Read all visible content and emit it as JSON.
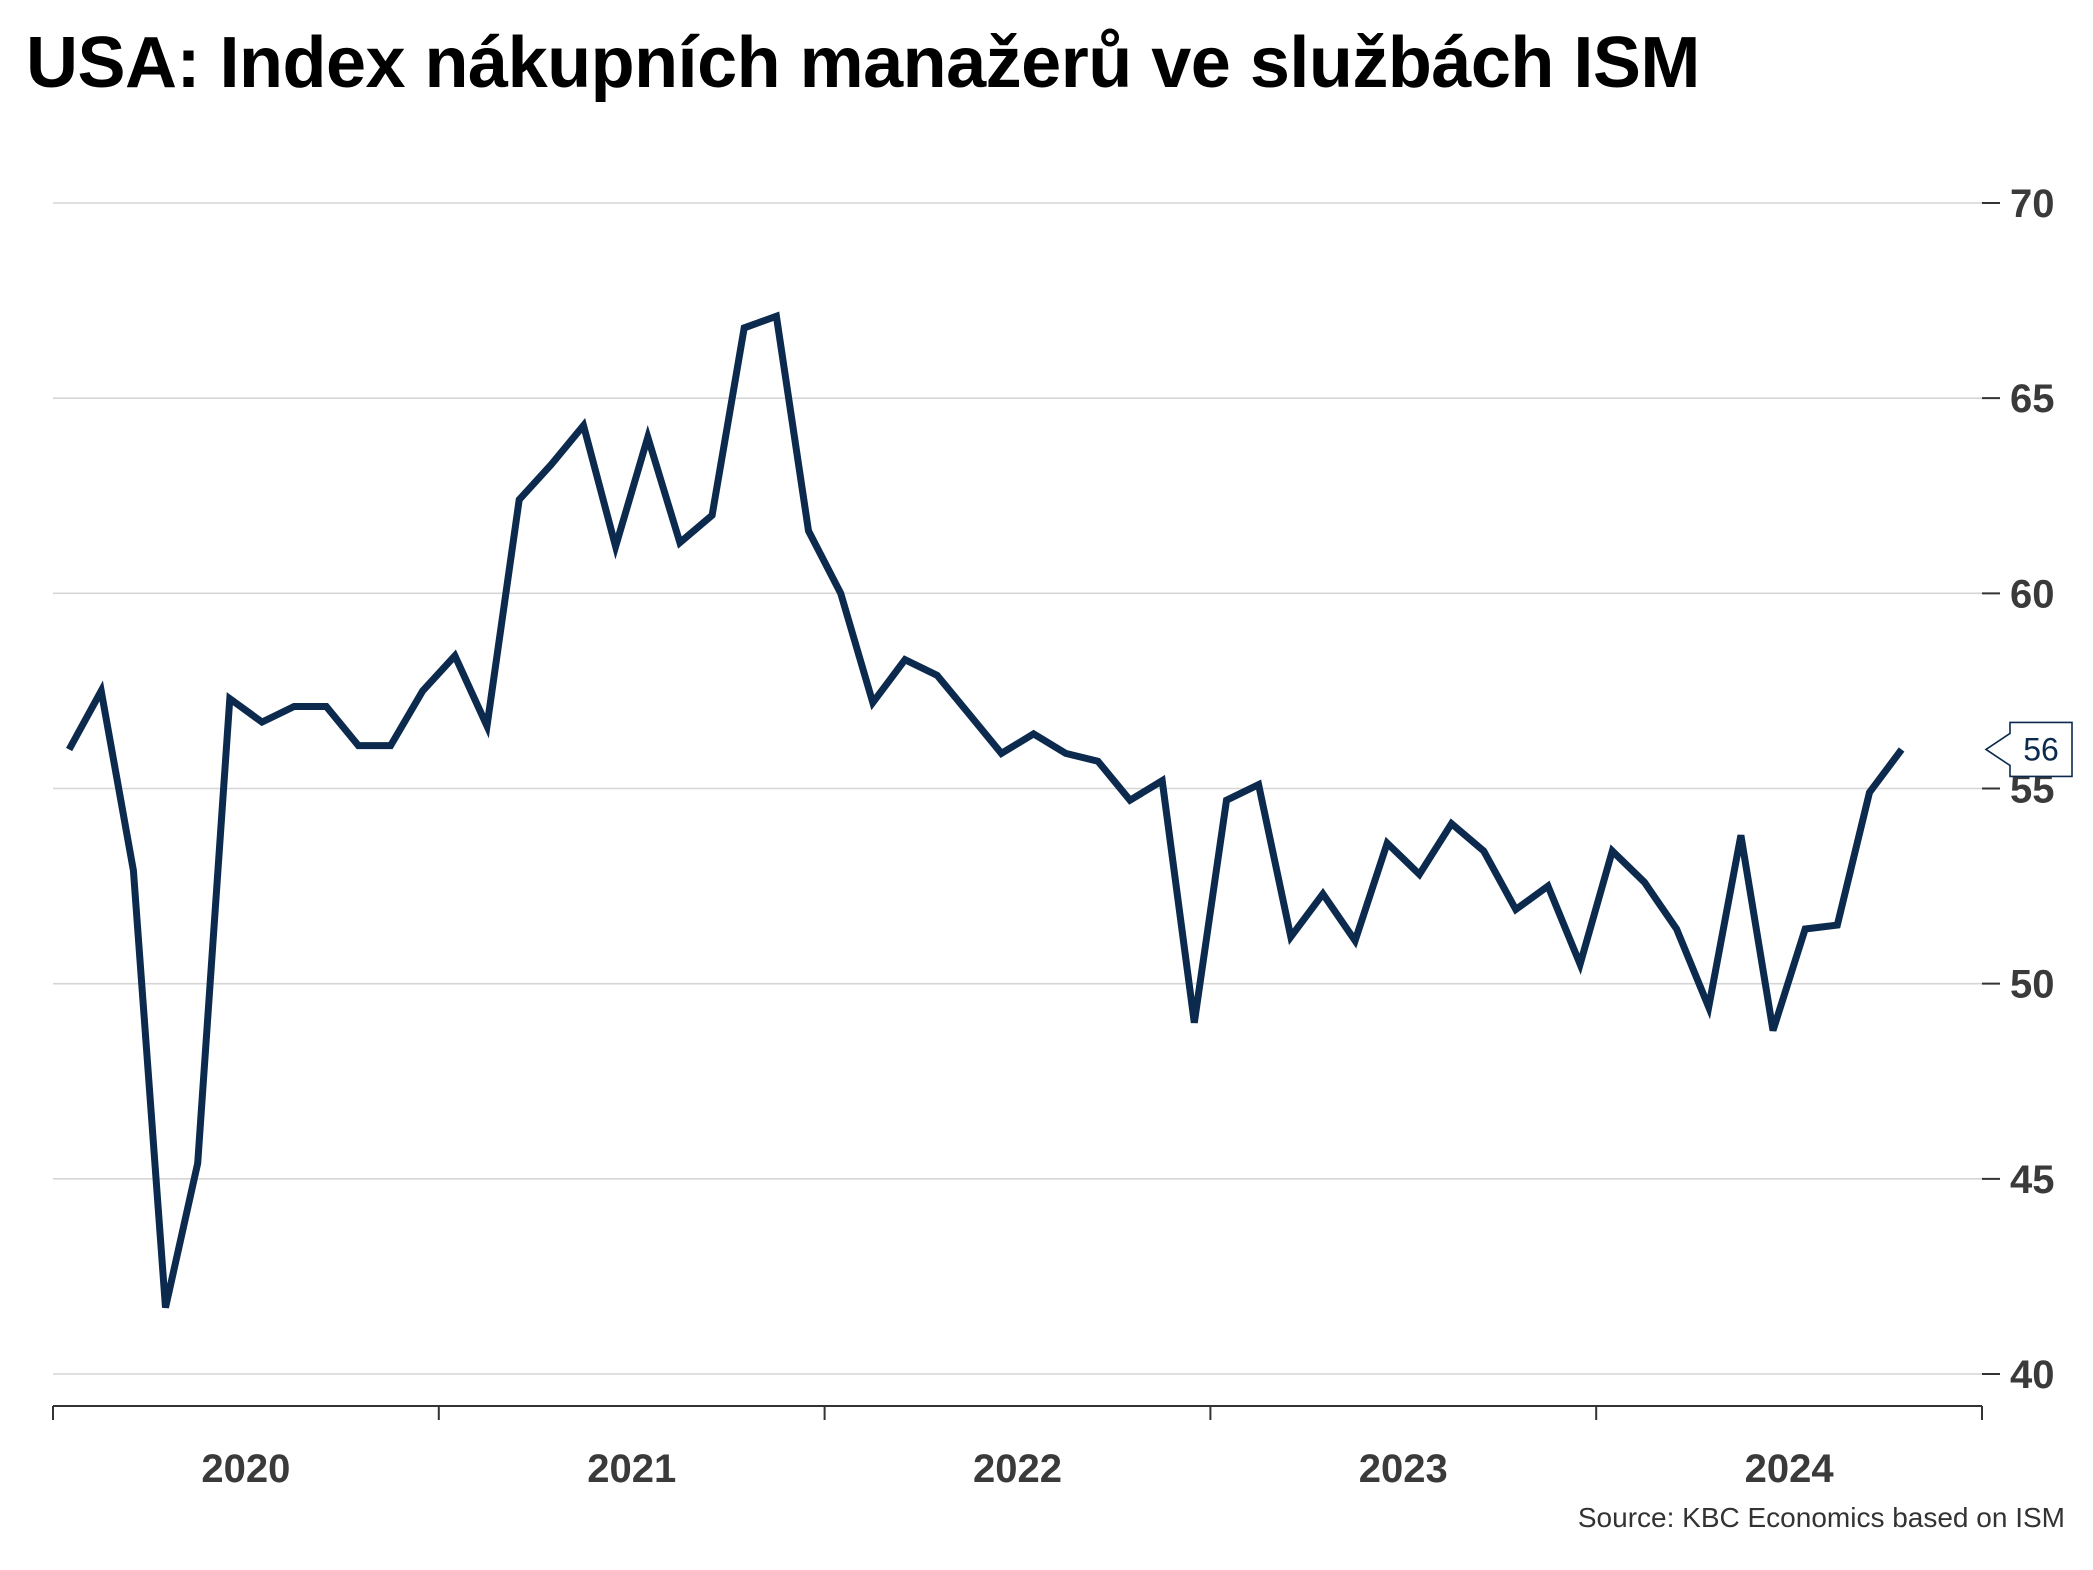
{
  "title": "USA: Index nákupních manažerů ve službách ISM",
  "source": "Source: KBC Economics based on ISM",
  "colors": {
    "line": "#0b2a4e",
    "grid": "#d6d6d6",
    "axis": "#333333",
    "tick_text": "#3a3a3a"
  },
  "chart_data": {
    "type": "line",
    "title": "USA: Index nákupních manažerů ve službách ISM",
    "xlabel": "",
    "ylabel": "",
    "ylim": [
      40,
      70
    ],
    "yticks": [
      40,
      45,
      50,
      55,
      60,
      65,
      70
    ],
    "grid": true,
    "legend": "none",
    "xticks": [
      "2020",
      "2021",
      "2022",
      "2023",
      "2024"
    ],
    "last_value_label": "56",
    "series": [
      {
        "x": [
          "2020-01",
          "2020-02",
          "2020-03",
          "2020-04",
          "2020-05",
          "2020-06",
          "2020-07",
          "2020-08",
          "2020-09",
          "2020-10",
          "2020-11",
          "2020-12",
          "2021-01",
          "2021-02",
          "2021-03",
          "2021-04",
          "2021-05",
          "2021-06",
          "2021-07",
          "2021-08",
          "2021-09",
          "2021-10",
          "2021-11",
          "2021-12",
          "2022-01",
          "2022-02",
          "2022-03",
          "2022-04",
          "2022-05",
          "2022-06",
          "2022-07",
          "2022-08",
          "2022-09",
          "2022-10",
          "2022-11",
          "2022-12",
          "2023-01",
          "2023-02",
          "2023-03",
          "2023-04",
          "2023-05",
          "2023-06",
          "2023-07",
          "2023-08",
          "2023-09",
          "2023-10",
          "2023-11",
          "2023-12",
          "2024-01",
          "2024-02",
          "2024-03",
          "2024-04",
          "2024-05",
          "2024-06",
          "2024-07",
          "2024-08",
          "2024-09",
          "2024-10"
        ],
        "values": [
          56.0,
          57.5,
          52.9,
          41.7,
          45.4,
          57.3,
          56.7,
          57.1,
          57.1,
          56.1,
          56.1,
          57.5,
          58.4,
          56.6,
          62.4,
          63.3,
          64.3,
          61.2,
          64.0,
          61.3,
          62.0,
          66.8,
          67.1,
          61.6,
          60.0,
          57.2,
          58.3,
          57.9,
          56.9,
          55.9,
          56.4,
          55.9,
          55.7,
          54.7,
          55.2,
          49.0,
          54.7,
          55.1,
          51.2,
          52.3,
          51.1,
          53.6,
          52.8,
          54.1,
          53.4,
          51.9,
          52.5,
          50.5,
          53.4,
          52.6,
          51.4,
          49.4,
          53.8,
          48.8,
          51.4,
          51.5,
          54.9,
          56.0
        ]
      }
    ]
  }
}
